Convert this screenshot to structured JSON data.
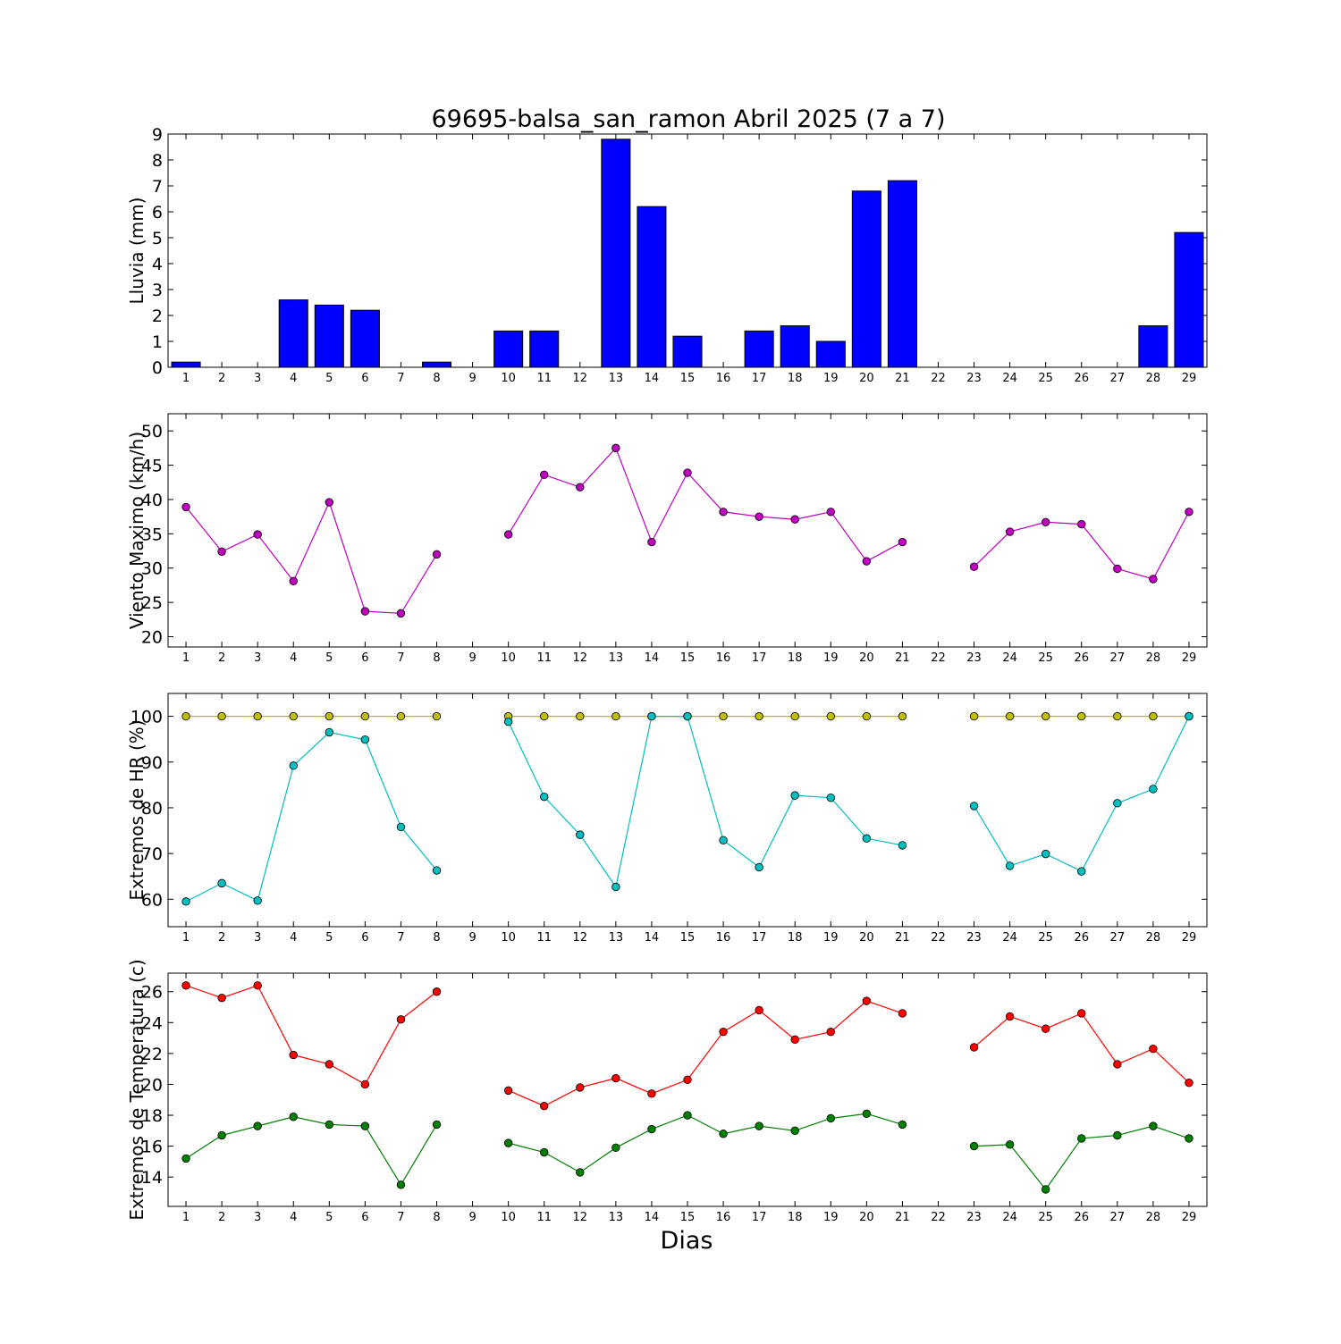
{
  "title": "69695-balsa_san_ramon Abril 2025  (7 a 7)",
  "xlabel": "Dias",
  "days": [
    1,
    2,
    3,
    4,
    5,
    6,
    7,
    8,
    9,
    10,
    11,
    12,
    13,
    14,
    15,
    16,
    17,
    18,
    19,
    20,
    21,
    22,
    23,
    24,
    25,
    26,
    27,
    28,
    29
  ],
  "colors": {
    "rain": "#0000ff",
    "wind": "#bf00bf",
    "hr_max": "#bfbf00",
    "hr_min": "#00bfbf",
    "t_max": "#ff0000",
    "t_min": "#008000"
  },
  "chart_data": [
    {
      "type": "bar",
      "ylabel": "Lluvia (mm)",
      "ylim": [
        0,
        9
      ],
      "yticks": [
        0,
        1,
        2,
        3,
        4,
        5,
        6,
        7,
        8,
        9
      ],
      "categories": [
        1,
        2,
        3,
        4,
        5,
        6,
        7,
        8,
        9,
        10,
        11,
        12,
        13,
        14,
        15,
        16,
        17,
        18,
        19,
        20,
        21,
        22,
        23,
        24,
        25,
        26,
        27,
        28,
        29
      ],
      "series": [
        {
          "values": [
            0.2,
            0,
            0,
            2.6,
            2.4,
            2.2,
            0,
            0.2,
            0,
            1.4,
            1.4,
            0,
            8.8,
            6.2,
            1.2,
            0,
            1.4,
            1.6,
            1.0,
            6.8,
            7.2,
            0,
            0,
            0,
            0,
            0,
            0,
            1.6,
            5.2
          ]
        }
      ]
    },
    {
      "type": "line",
      "ylabel": "Viento Maximo (km/h)",
      "ylim": [
        18.5,
        52.5
      ],
      "yticks": [
        20,
        25,
        30,
        35,
        40,
        45,
        50
      ],
      "x": [
        1,
        2,
        3,
        4,
        5,
        6,
        7,
        8,
        9,
        10,
        11,
        12,
        13,
        14,
        15,
        16,
        17,
        18,
        19,
        20,
        21,
        22,
        23,
        24,
        25,
        26,
        27,
        28,
        29
      ],
      "series": [
        {
          "values": [
            38.9,
            32.4,
            34.9,
            28.1,
            39.6,
            23.7,
            23.4,
            32.0,
            null,
            34.9,
            43.6,
            41.8,
            47.5,
            33.8,
            43.9,
            38.2,
            37.5,
            37.1,
            38.2,
            31.0,
            33.8,
            null,
            30.2,
            35.3,
            36.7,
            36.4,
            29.9,
            28.4,
            38.2
          ]
        }
      ]
    },
    {
      "type": "line",
      "ylabel": "Extremos de HR (%)",
      "ylim": [
        54,
        105
      ],
      "yticks": [
        60,
        70,
        80,
        90,
        100
      ],
      "x": [
        1,
        2,
        3,
        4,
        5,
        6,
        7,
        8,
        9,
        10,
        11,
        12,
        13,
        14,
        15,
        16,
        17,
        18,
        19,
        20,
        21,
        22,
        23,
        24,
        25,
        26,
        27,
        28,
        29
      ],
      "series": [
        {
          "values": [
            100,
            100,
            100,
            100,
            100,
            100,
            100,
            100,
            null,
            100,
            100,
            100,
            100,
            100,
            100,
            100,
            100,
            100,
            100,
            100,
            100,
            null,
            100,
            100,
            100,
            100,
            100,
            100,
            100
          ]
        },
        {
          "values": [
            59.5,
            63.5,
            59.7,
            89.2,
            96.5,
            94.9,
            75.8,
            66.3,
            null,
            98.8,
            82.4,
            74.1,
            62.7,
            100,
            100,
            72.9,
            67.0,
            82.7,
            82.2,
            73.3,
            71.8,
            null,
            80.4,
            67.3,
            69.9,
            66.1,
            81.0,
            84.1,
            100
          ]
        }
      ]
    },
    {
      "type": "line",
      "ylabel": "Extremos de Temperatura (c)",
      "ylim": [
        12.1,
        27.2
      ],
      "yticks": [
        14,
        16,
        18,
        20,
        22,
        24,
        26
      ],
      "x": [
        1,
        2,
        3,
        4,
        5,
        6,
        7,
        8,
        9,
        10,
        11,
        12,
        13,
        14,
        15,
        16,
        17,
        18,
        19,
        20,
        21,
        22,
        23,
        24,
        25,
        26,
        27,
        28,
        29
      ],
      "series": [
        {
          "values": [
            26.4,
            25.6,
            26.4,
            21.9,
            21.3,
            20.0,
            24.2,
            26.0,
            null,
            19.6,
            18.6,
            19.8,
            20.4,
            19.4,
            20.3,
            23.4,
            24.8,
            22.9,
            23.4,
            25.4,
            24.6,
            null,
            22.4,
            24.4,
            23.6,
            24.6,
            21.3,
            22.3,
            20.1
          ]
        },
        {
          "values": [
            15.2,
            16.7,
            17.3,
            17.9,
            17.4,
            17.3,
            13.5,
            17.4,
            null,
            16.2,
            15.6,
            14.3,
            15.9,
            17.1,
            18.0,
            16.8,
            17.3,
            17.0,
            17.8,
            18.1,
            17.4,
            null,
            16.0,
            16.1,
            13.2,
            16.5,
            16.7,
            17.3,
            16.5
          ]
        }
      ]
    }
  ]
}
